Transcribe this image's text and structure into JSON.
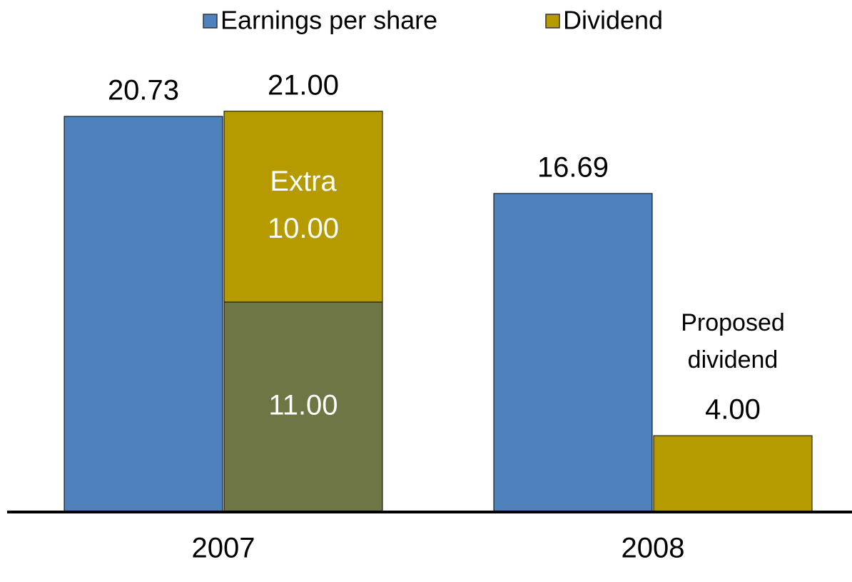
{
  "chart_data": {
    "type": "bar",
    "categories": [
      "2007",
      "2008"
    ],
    "series": [
      {
        "name": "Earnings per share",
        "color": "#4f81bd",
        "values": [
          20.73,
          16.69
        ]
      },
      {
        "name": "Dividend",
        "color": "#b59b00",
        "values": [
          21,
          4
        ],
        "value_labels": [
          "21.00",
          "4.00"
        ]
      }
    ],
    "breakdown": {
      "category": "2007",
      "segments": [
        {
          "value": 11,
          "value_label": "11.00",
          "color": "#6e7645"
        },
        {
          "name": "Extra",
          "value": 10,
          "value_label": "10.00",
          "color": "#b59b00"
        }
      ]
    },
    "annotation": {
      "category": "2008",
      "text": "Proposed dividend"
    },
    "ylim": [
      0,
      22
    ],
    "legend": "top"
  }
}
